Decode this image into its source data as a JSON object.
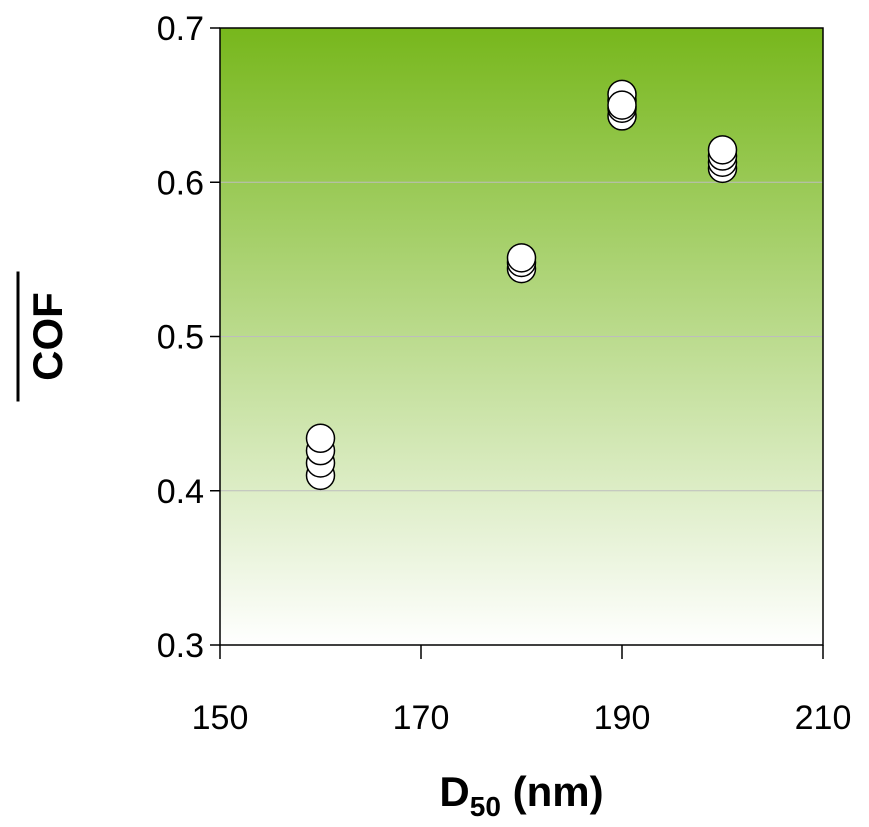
{
  "chart_data": {
    "type": "scatter",
    "title": "",
    "xlabel": {
      "main": "D",
      "subscript": "50",
      "suffix": " (nm)"
    },
    "ylabel": "COF",
    "ylabel_overline": true,
    "xlim": [
      150,
      210
    ],
    "ylim": [
      0.3,
      0.7
    ],
    "xticks": [
      "150",
      "170",
      "190",
      "210"
    ],
    "yticks": [
      "0.3",
      "0.4",
      "0.5",
      "0.6",
      "0.7"
    ],
    "grid": {
      "horizontal": true,
      "vertical": false
    },
    "plot_background": {
      "type": "vertical-gradient",
      "top": "#77b71c",
      "bottom": "#ffffff"
    },
    "marker": {
      "shape": "circle",
      "fill": "#ffffff",
      "stroke": "#000000"
    },
    "points": [
      {
        "x": 160,
        "y": 0.41
      },
      {
        "x": 160,
        "y": 0.418
      },
      {
        "x": 160,
        "y": 0.426
      },
      {
        "x": 160,
        "y": 0.434
      },
      {
        "x": 180,
        "y": 0.544
      },
      {
        "x": 180,
        "y": 0.548
      },
      {
        "x": 180,
        "y": 0.551
      },
      {
        "x": 190,
        "y": 0.643
      },
      {
        "x": 190,
        "y": 0.648
      },
      {
        "x": 190,
        "y": 0.653
      },
      {
        "x": 190,
        "y": 0.657
      },
      {
        "x": 190,
        "y": 0.65
      },
      {
        "x": 200,
        "y": 0.609
      },
      {
        "x": 200,
        "y": 0.613
      },
      {
        "x": 200,
        "y": 0.617
      },
      {
        "x": 200,
        "y": 0.621
      }
    ]
  }
}
